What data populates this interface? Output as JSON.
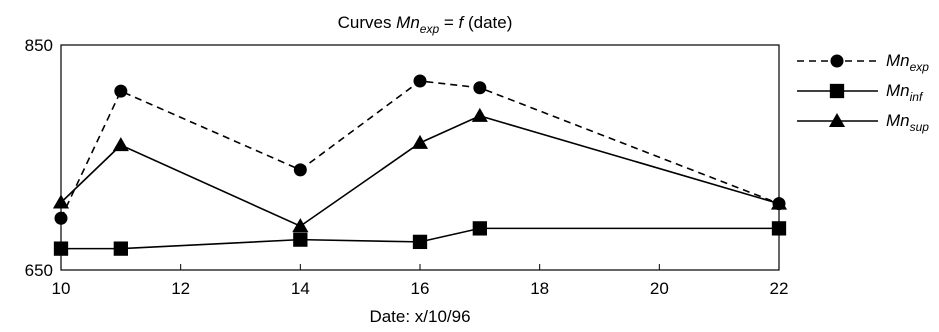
{
  "chart_data": {
    "type": "line",
    "title": {
      "prefix": "Curves ",
      "var": "Mn",
      "sub": "exp",
      "suffix": " = ",
      "func": "f",
      "arg": " (date)"
    },
    "xlabel": "Date:   x/10/96",
    "ylabel": "",
    "xlim": [
      10,
      22
    ],
    "ylim": [
      650,
      850
    ],
    "xticks": [
      10,
      12,
      14,
      16,
      18,
      20,
      22
    ],
    "yticks": [
      650,
      850
    ],
    "grid": false,
    "legend_position": "right",
    "series": [
      {
        "name": "Mn",
        "name_sub": "exp",
        "line_style": "dashed",
        "marker": "circle",
        "color": "#000000",
        "x": [
          10,
          11,
          14,
          16,
          17,
          22
        ],
        "y": [
          696,
          809,
          739,
          818,
          812,
          709
        ]
      },
      {
        "name": "Mn",
        "name_sub": "inf",
        "line_style": "solid",
        "marker": "square",
        "color": "#000000",
        "x": [
          10,
          11,
          14,
          16,
          17,
          22
        ],
        "y": [
          669,
          669,
          677,
          675,
          687,
          687
        ]
      },
      {
        "name": "Mn",
        "name_sub": "sup",
        "line_style": "solid",
        "marker": "triangle",
        "color": "#000000",
        "x": [
          10,
          11,
          14,
          16,
          17,
          22
        ],
        "y": [
          710,
          761,
          689,
          763,
          787,
          709
        ]
      }
    ]
  }
}
